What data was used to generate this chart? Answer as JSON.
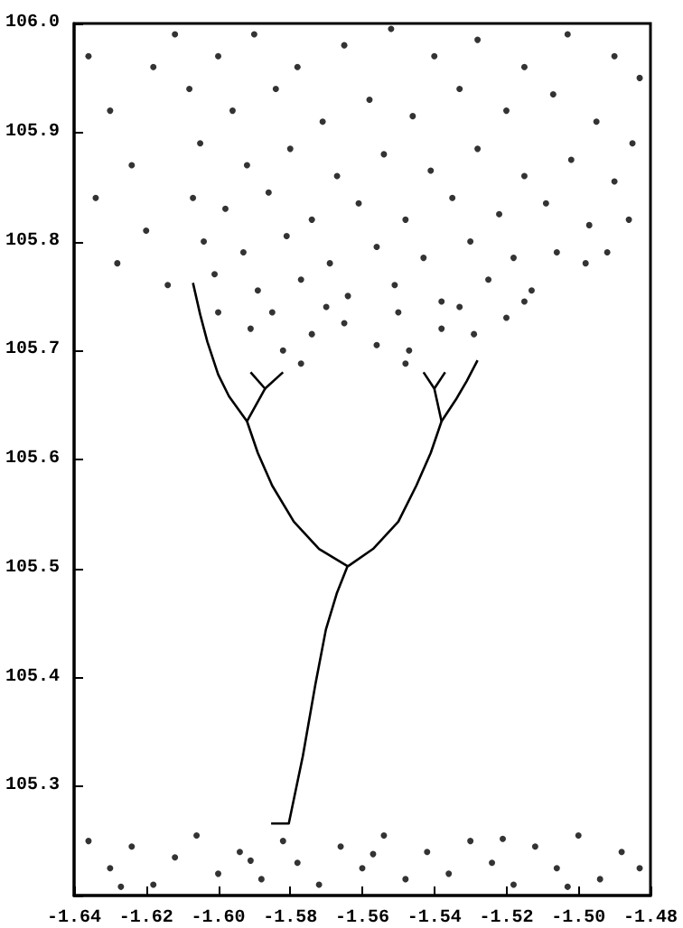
{
  "chart_data": {
    "type": "scatter",
    "marker": "circle",
    "grid": false,
    "xlim": [
      -1.64,
      -1.48
    ],
    "ylim": [
      105.2,
      106.0
    ],
    "xticks": [
      -1.64,
      -1.62,
      {
        "value": -1.6,
        "label": "-1.60"
      },
      -1.58,
      -1.56,
      -1.54,
      -1.52,
      {
        "value": -1.5,
        "label": "-1.50"
      },
      -1.48
    ],
    "yticks": [
      {
        "value": 105.2,
        "label": null
      },
      105.3,
      105.4,
      105.5,
      105.6,
      105.7,
      105.8,
      105.9,
      {
        "value": 106.0,
        "label": "106.0"
      }
    ],
    "series": [
      {
        "color": "#000000",
        "x": [
          -1.612,
          -1.6,
          -1.59,
          -1.578,
          -1.565,
          -1.552,
          -1.54,
          -1.528,
          -1.515,
          -1.503,
          -1.49,
          -1.483,
          -1.608,
          -1.596,
          -1.584,
          -1.571,
          -1.558,
          -1.546,
          -1.533,
          -1.52,
          -1.507,
          -1.495,
          -1.485,
          -1.605,
          -1.592,
          -1.58,
          -1.567,
          -1.554,
          -1.541,
          -1.528,
          -1.515,
          -1.502,
          -1.49,
          -1.607,
          -1.598,
          -1.586,
          -1.574,
          -1.561,
          -1.548,
          -1.535,
          -1.522,
          -1.509,
          -1.497,
          -1.604,
          -1.593,
          -1.581,
          -1.569,
          -1.556,
          -1.543,
          -1.53,
          -1.518,
          -1.506,
          -1.601,
          -1.589,
          -1.577,
          -1.564,
          -1.551,
          -1.538,
          -1.525,
          -1.513,
          -1.6,
          -1.591,
          -1.582,
          -1.574,
          -1.565,
          -1.556,
          -1.547,
          -1.538,
          -1.529,
          -1.52,
          -1.585,
          -1.57,
          -1.55,
          -1.533,
          -1.515,
          -1.577,
          -1.548,
          -1.636,
          -1.63,
          -1.624,
          -1.634,
          -1.62,
          -1.628,
          -1.614,
          -1.618,
          -1.486,
          -1.492,
          -1.498,
          -1.636,
          -1.63,
          -1.624,
          -1.618,
          -1.612,
          -1.606,
          -1.6,
          -1.594,
          -1.588,
          -1.582,
          -1.578,
          -1.572,
          -1.566,
          -1.56,
          -1.554,
          -1.548,
          -1.542,
          -1.536,
          -1.53,
          -1.524,
          -1.518,
          -1.512,
          -1.506,
          -1.5,
          -1.494,
          -1.488,
          -1.483,
          -1.627,
          -1.591,
          -1.557,
          -1.521,
          -1.503
        ],
        "values": [
          105.99,
          105.97,
          105.99,
          105.96,
          105.98,
          105.995,
          105.97,
          105.985,
          105.96,
          105.99,
          105.97,
          105.95,
          105.94,
          105.92,
          105.94,
          105.91,
          105.93,
          105.915,
          105.94,
          105.92,
          105.935,
          105.91,
          105.89,
          105.89,
          105.87,
          105.885,
          105.86,
          105.88,
          105.865,
          105.885,
          105.86,
          105.875,
          105.855,
          105.84,
          105.83,
          105.845,
          105.82,
          105.835,
          105.82,
          105.84,
          105.825,
          105.835,
          105.815,
          105.8,
          105.79,
          105.805,
          105.78,
          105.795,
          105.785,
          105.8,
          105.785,
          105.79,
          105.77,
          105.755,
          105.765,
          105.75,
          105.76,
          105.745,
          105.765,
          105.755,
          105.735,
          105.72,
          105.7,
          105.715,
          105.725,
          105.705,
          105.7,
          105.72,
          105.715,
          105.73,
          105.735,
          105.74,
          105.735,
          105.74,
          105.745,
          105.688,
          105.688,
          105.97,
          105.92,
          105.87,
          105.84,
          105.81,
          105.78,
          105.76,
          105.96,
          105.82,
          105.79,
          105.78,
          105.25,
          105.225,
          105.245,
          105.21,
          105.235,
          105.255,
          105.22,
          105.24,
          105.215,
          105.25,
          105.23,
          105.21,
          105.245,
          105.225,
          105.255,
          105.215,
          105.24,
          105.22,
          105.25,
          105.23,
          105.21,
          105.245,
          105.225,
          105.255,
          105.215,
          105.24,
          105.225,
          105.208,
          105.232,
          105.238,
          105.252,
          105.208
        ]
      },
      {
        "type": "line",
        "color": "#000000",
        "marker": "none",
        "x": [
          -1.5853,
          -1.5804,
          -1.5765,
          -1.573,
          -1.5701,
          -1.5671,
          -1.5641
        ],
        "values": [
          105.266,
          105.266,
          105.328,
          105.394,
          105.444,
          105.477,
          105.502
        ]
      },
      {
        "type": "line",
        "color": "#000000",
        "marker": "none",
        "x": [
          -1.564,
          -1.572,
          -1.579,
          -1.585,
          -1.589,
          -1.592,
          -1.597,
          -1.6,
          -1.603,
          -1.605,
          -1.607
        ],
        "values": [
          105.502,
          105.518,
          105.543,
          105.576,
          105.606,
          105.635,
          105.658,
          105.678,
          105.708,
          105.733,
          105.762
        ]
      },
      {
        "type": "line",
        "color": "#000000",
        "marker": "none",
        "x": [
          -1.592,
          -1.587,
          -1.591
        ],
        "values": [
          105.635,
          105.665,
          105.68
        ]
      },
      {
        "type": "line",
        "color": "#000000",
        "marker": "none",
        "x": [
          -1.587,
          -1.582
        ],
        "values": [
          105.665,
          105.68
        ]
      },
      {
        "type": "line",
        "color": "#000000",
        "marker": "none",
        "x": [
          -1.564,
          -1.557,
          -1.55,
          -1.545,
          -1.541,
          -1.538,
          -1.534,
          -1.531,
          -1.528
        ],
        "values": [
          105.502,
          105.518,
          105.543,
          105.576,
          105.606,
          105.635,
          105.655,
          105.672,
          105.691
        ]
      },
      {
        "type": "line",
        "color": "#000000",
        "marker": "none",
        "x": [
          -1.538,
          -1.54,
          -1.543
        ],
        "values": [
          105.635,
          105.665,
          105.68
        ]
      },
      {
        "type": "line",
        "color": "#000000",
        "marker": "none",
        "x": [
          -1.54,
          -1.537
        ],
        "values": [
          105.665,
          105.68
        ]
      }
    ]
  }
}
